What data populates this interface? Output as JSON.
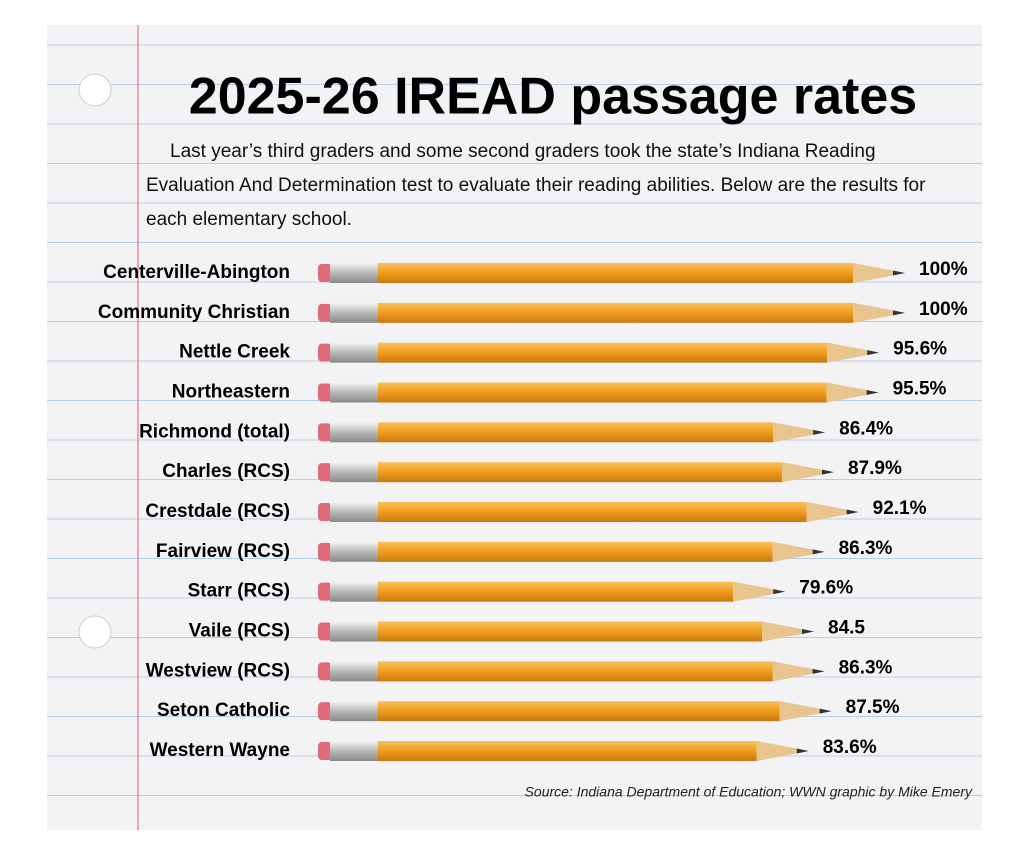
{
  "chart_data": {
    "type": "bar",
    "title": "2025-26 IREAD passage rates",
    "subtitle": "Last year’s third graders and some second graders took the state’s Indiana Reading Evaluation And Determination test to evaluate their reading abilities. Below are the results for each elementary school.",
    "categories": [
      "Centerville-Abington",
      "Community Christian",
      "Nettle Creek",
      "Northeastern",
      "Richmond (total)",
      "Charles (RCS)",
      "Crestdale (RCS)",
      "Fairview (RCS)",
      "Starr (RCS)",
      "Vaile (RCS)",
      "Westview (RCS)",
      "Seton Catholic",
      "Western Wayne"
    ],
    "values": [
      100,
      100,
      95.6,
      95.5,
      86.4,
      87.9,
      92.1,
      86.3,
      79.6,
      84.5,
      86.3,
      87.5,
      83.6
    ],
    "value_labels": [
      "100%",
      "100%",
      "95.6%",
      "95.5%",
      "86.4%",
      "87.9%",
      "92.1%",
      "86.3%",
      "79.6%",
      "84.5",
      "86.3%",
      "87.5%",
      "83.6%"
    ],
    "color": "#f2a020",
    "source": "Source: Indiana Department of Education; WWN graphic by Mike Emery"
  }
}
